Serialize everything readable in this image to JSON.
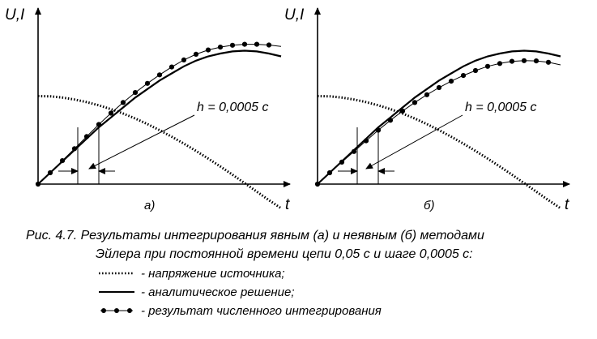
{
  "chart_data": [
    {
      "type": "line",
      "panel_label": "а)",
      "ylabel": "U,I",
      "xlabel": "t",
      "annotation": "h = 0,0005 с",
      "x": [
        0,
        0.05,
        0.1,
        0.15,
        0.2,
        0.25,
        0.3,
        0.35,
        0.4,
        0.45,
        0.5,
        0.55,
        0.6,
        0.65,
        0.7,
        0.75,
        0.8,
        0.85,
        0.9,
        0.95,
        1.0
      ],
      "series": [
        {
          "role": "source_voltage",
          "style": "dotted",
          "values": [
            0.62,
            0.618,
            0.61,
            0.596,
            0.578,
            0.555,
            0.528,
            0.497,
            0.462,
            0.423,
            0.38,
            0.334,
            0.285,
            0.234,
            0.18,
            0.124,
            0.066,
            0.007,
            -0.053,
            -0.113,
            -0.17
          ]
        },
        {
          "role": "analytic_solution",
          "style": "solid",
          "values": [
            0,
            0.08,
            0.16,
            0.24,
            0.32,
            0.4,
            0.47,
            0.54,
            0.61,
            0.67,
            0.73,
            0.78,
            0.83,
            0.87,
            0.9,
            0.92,
            0.935,
            0.94,
            0.935,
            0.92,
            0.9
          ]
        },
        {
          "role": "numerical_integration",
          "style": "dots",
          "values": [
            0,
            0.08,
            0.165,
            0.25,
            0.335,
            0.42,
            0.5,
            0.575,
            0.645,
            0.71,
            0.77,
            0.825,
            0.875,
            0.915,
            0.945,
            0.965,
            0.978,
            0.985,
            0.985,
            0.98,
            0.97
          ]
        }
      ]
    },
    {
      "type": "line",
      "panel_label": "б)",
      "ylabel": "U,I",
      "xlabel": "t",
      "annotation": "h = 0,0005 с",
      "x": [
        0,
        0.05,
        0.1,
        0.15,
        0.2,
        0.25,
        0.3,
        0.35,
        0.4,
        0.45,
        0.5,
        0.55,
        0.6,
        0.65,
        0.7,
        0.75,
        0.8,
        0.85,
        0.9,
        0.95,
        1.0
      ],
      "series": [
        {
          "role": "source_voltage",
          "style": "dotted",
          "values": [
            0.62,
            0.618,
            0.61,
            0.596,
            0.578,
            0.555,
            0.528,
            0.497,
            0.462,
            0.423,
            0.38,
            0.334,
            0.285,
            0.234,
            0.18,
            0.124,
            0.066,
            0.007,
            -0.053,
            -0.113,
            -0.17
          ]
        },
        {
          "role": "analytic_solution",
          "style": "solid",
          "values": [
            0,
            0.08,
            0.16,
            0.24,
            0.32,
            0.4,
            0.47,
            0.54,
            0.61,
            0.67,
            0.73,
            0.78,
            0.83,
            0.87,
            0.9,
            0.92,
            0.935,
            0.94,
            0.935,
            0.92,
            0.9
          ]
        },
        {
          "role": "numerical_integration",
          "style": "dots",
          "values": [
            0,
            0.08,
            0.155,
            0.23,
            0.305,
            0.38,
            0.45,
            0.515,
            0.575,
            0.63,
            0.68,
            0.725,
            0.765,
            0.8,
            0.83,
            0.85,
            0.865,
            0.87,
            0.868,
            0.858,
            0.84
          ]
        }
      ]
    }
  ],
  "caption": {
    "line1": "Рис. 4.7. Результаты интегрирования явным (а) и неявным (б) методами",
    "line2": "Эйлера при постоянной времени цепи 0,05 с и шаге 0,0005 с:"
  },
  "legend": [
    {
      "style": "dotted",
      "label": "- напряжение источника;"
    },
    {
      "style": "solid",
      "label": "- аналитическое решение;"
    },
    {
      "style": "dots",
      "label": "- результат численного интегрирования"
    }
  ]
}
